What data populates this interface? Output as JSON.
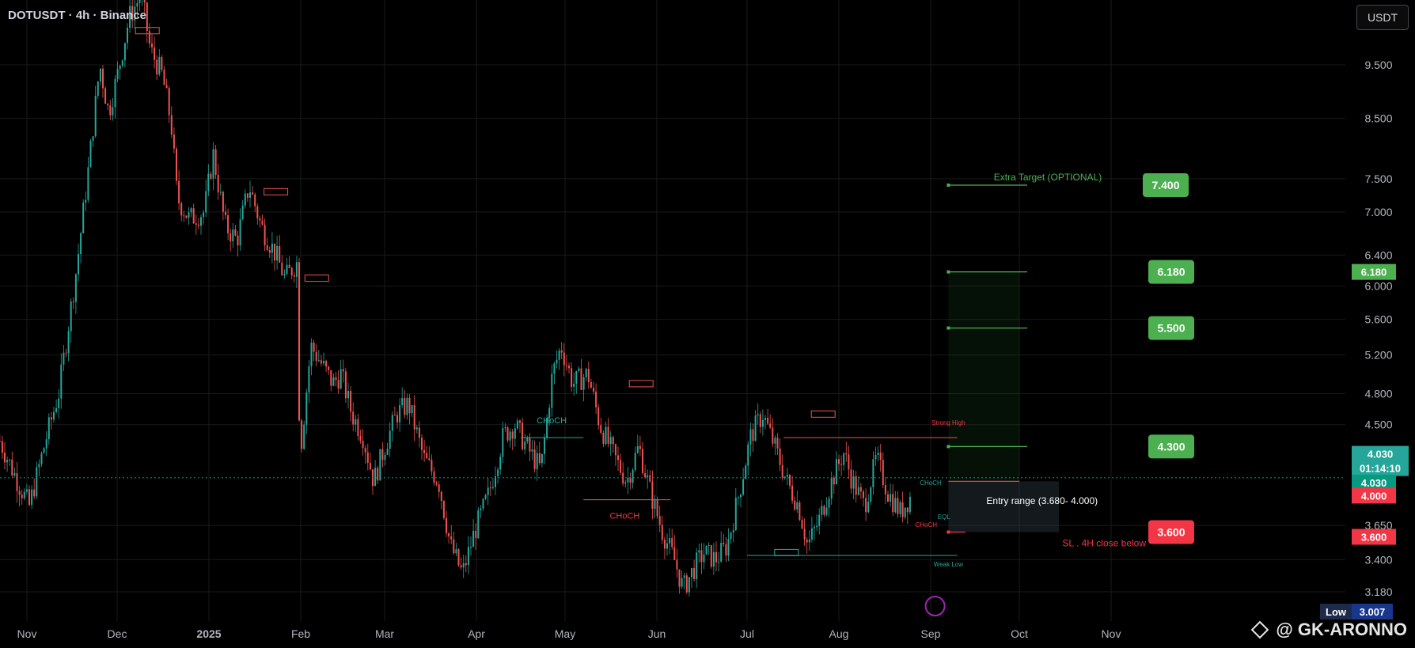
{
  "header": {
    "symbol_title": "DOTUSDT · 4h · Binance",
    "unit_button": "USDT"
  },
  "watermark": {
    "handle": "@ GK-ARONNO"
  },
  "chart_data": {
    "type": "candlestick",
    "symbol": "DOTUSDT",
    "timeframe": "4h",
    "exchange": "Binance",
    "x_labels": [
      "Nov",
      "Dec",
      "2025",
      "Feb",
      "Mar",
      "Apr",
      "May",
      "Jun",
      "Jul",
      "Aug",
      "Sep",
      "Oct",
      "Nov"
    ],
    "y_ticks": [
      9.5,
      8.5,
      7.5,
      7.0,
      6.4,
      6.0,
      5.6,
      5.2,
      4.8,
      4.5,
      3.65,
      3.4,
      3.18
    ],
    "y_tick_labels": [
      "9.500",
      "8.500",
      "7.500",
      "7.000",
      "6.400",
      "6.000",
      "5.600",
      "5.200",
      "4.800",
      "4.500",
      "3.650",
      "3.400",
      "3.180"
    ],
    "ylim": [
      3.0,
      11.0
    ],
    "log_scale": true,
    "price_path": [
      [
        0,
        4.35
      ],
      [
        0.6,
        4.0
      ],
      [
        1.0,
        3.8
      ],
      [
        1.6,
        4.4
      ],
      [
        2.0,
        4.8
      ],
      [
        2.6,
        6.2
      ],
      [
        3.0,
        7.6
      ],
      [
        3.4,
        9.5
      ],
      [
        3.7,
        8.6
      ],
      [
        4.0,
        9.3
      ],
      [
        4.4,
        10.5
      ],
      [
        4.8,
        11.0
      ],
      [
        5.1,
        9.8
      ],
      [
        5.5,
        9.3
      ],
      [
        5.8,
        8.4
      ],
      [
        6.0,
        7.2
      ],
      [
        6.4,
        6.9
      ],
      [
        6.9,
        7.0
      ],
      [
        7.2,
        7.9
      ],
      [
        7.6,
        6.8
      ],
      [
        8.0,
        6.6
      ],
      [
        8.4,
        7.4
      ],
      [
        8.8,
        6.8
      ],
      [
        9.3,
        6.4
      ],
      [
        9.6,
        6.1
      ],
      [
        10.0,
        6.3
      ],
      [
        10.1,
        4.2
      ],
      [
        10.5,
        5.3
      ],
      [
        10.9,
        5.1
      ],
      [
        11.3,
        4.9
      ],
      [
        11.6,
        5.0
      ],
      [
        12.0,
        4.6
      ],
      [
        12.4,
        4.4
      ],
      [
        12.8,
        4.0
      ],
      [
        13.2,
        4.3
      ],
      [
        13.6,
        4.6
      ],
      [
        14.0,
        4.7
      ],
      [
        14.5,
        4.2
      ],
      [
        15.0,
        4.0
      ],
      [
        15.4,
        3.5
      ],
      [
        15.8,
        3.3
      ],
      [
        16.2,
        3.6
      ],
      [
        16.7,
        3.9
      ],
      [
        17.2,
        4.4
      ],
      [
        17.6,
        4.5
      ],
      [
        18.0,
        4.3
      ],
      [
        18.5,
        4.1
      ],
      [
        18.9,
        5.0
      ],
      [
        19.2,
        5.3
      ],
      [
        19.6,
        4.9
      ],
      [
        20.1,
        5.0
      ],
      [
        20.5,
        4.5
      ],
      [
        21.0,
        4.2
      ],
      [
        21.4,
        4.0
      ],
      [
        21.8,
        4.3
      ],
      [
        22.2,
        3.9
      ],
      [
        22.6,
        3.6
      ],
      [
        23.0,
        3.4
      ],
      [
        23.3,
        3.2
      ],
      [
        23.7,
        3.35
      ],
      [
        24.0,
        3.45
      ],
      [
        24.4,
        3.4
      ],
      [
        24.8,
        3.5
      ],
      [
        25.2,
        3.9
      ],
      [
        25.6,
        4.4
      ],
      [
        26.0,
        4.6
      ],
      [
        26.4,
        4.3
      ],
      [
        26.8,
        4.0
      ],
      [
        27.2,
        3.8
      ],
      [
        27.5,
        3.5
      ],
      [
        27.9,
        3.7
      ],
      [
        28.3,
        4.0
      ],
      [
        28.7,
        4.25
      ],
      [
        29.0,
        4.0
      ],
      [
        29.4,
        3.8
      ],
      [
        29.8,
        4.2
      ],
      [
        30.2,
        3.9
      ],
      [
        30.6,
        3.75
      ],
      [
        31.0,
        3.9
      ]
    ],
    "levels": [
      {
        "label": "Extra Target (OPTIONAL)",
        "value": 7.4,
        "badge": "7.400",
        "color": "#4caf50"
      },
      {
        "label": "",
        "value": 6.18,
        "badge": "6.180",
        "color": "#4caf50"
      },
      {
        "label": "",
        "value": 5.5,
        "badge": "5.500",
        "color": "#4caf50"
      },
      {
        "label": "",
        "value": 4.3,
        "badge": "4.300",
        "color": "#4caf50"
      },
      {
        "label": "SL . 4H close below",
        "value": 3.6,
        "badge": "3.600",
        "color": "#f23645"
      }
    ],
    "entry_range": {
      "text": "Entry range   (3.680- 4.000)",
      "low": 3.68,
      "high": 4.0
    },
    "annotations": [
      {
        "text": "CHoCH",
        "color": "#26a69a"
      },
      {
        "text": "CHoCH",
        "color": "#f23645"
      },
      {
        "text": "Strong High",
        "color": "#f23645"
      },
      {
        "text": "Weak Low",
        "color": "#26a69a"
      },
      {
        "text": "CHoCH",
        "color": "#26a69a"
      },
      {
        "text": "CHoCH",
        "color": "#f23645"
      },
      {
        "text": "EQL",
        "color": "#26a69a"
      }
    ],
    "axis_badges": [
      {
        "text": "6.180",
        "color": "#4caf50"
      },
      {
        "text": "4.030",
        "color": "#26a69a"
      },
      {
        "text": "01:14:10",
        "color": "#26a69a"
      },
      {
        "text": "4.030",
        "color": "#089981"
      },
      {
        "text": "4.000",
        "color": "#f23645"
      },
      {
        "text": "3.600",
        "color": "#f23645"
      }
    ],
    "low_badge": {
      "label": "Low",
      "value": "3.007"
    },
    "last_price": 4.03,
    "countdown": "01:14:10",
    "colors": {
      "up": "#26a69a",
      "down": "#ef5350",
      "target": "#4caf50",
      "stop": "#f23645"
    }
  }
}
